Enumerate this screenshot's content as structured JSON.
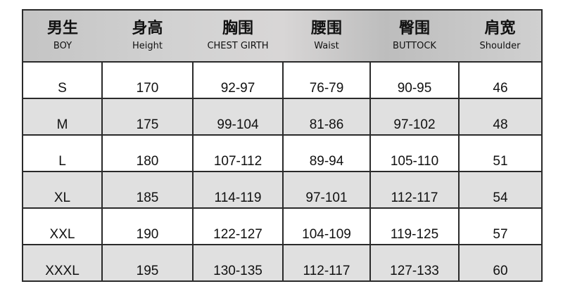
{
  "headers": [
    {
      "zh": "男生",
      "en": "BOY"
    },
    {
      "zh": "身高",
      "en": "Height"
    },
    {
      "zh": "胸围",
      "en": "CHEST GIRTH"
    },
    {
      "zh": "腰围",
      "en": "Waist"
    },
    {
      "zh": "臀围",
      "en": "BUTTOCK"
    },
    {
      "zh": "肩宽",
      "en": "Shoulder"
    }
  ],
  "rows": [
    [
      "S",
      "170",
      "92-97",
      "76-79",
      "90-95",
      "46"
    ],
    [
      "M",
      "175",
      "99-104",
      "81-86",
      "97-102",
      "48"
    ],
    [
      "L",
      "180",
      "107-112",
      "89-94",
      "105-110",
      "51"
    ],
    [
      "XL",
      "185",
      "114-119",
      "97-101",
      "112-117",
      "54"
    ],
    [
      "XXL",
      "190",
      "122-127",
      "104-109",
      "119-125",
      "57"
    ],
    [
      "XXXL",
      "195",
      "130-135",
      "112-117",
      "127-133",
      "60"
    ]
  ]
}
